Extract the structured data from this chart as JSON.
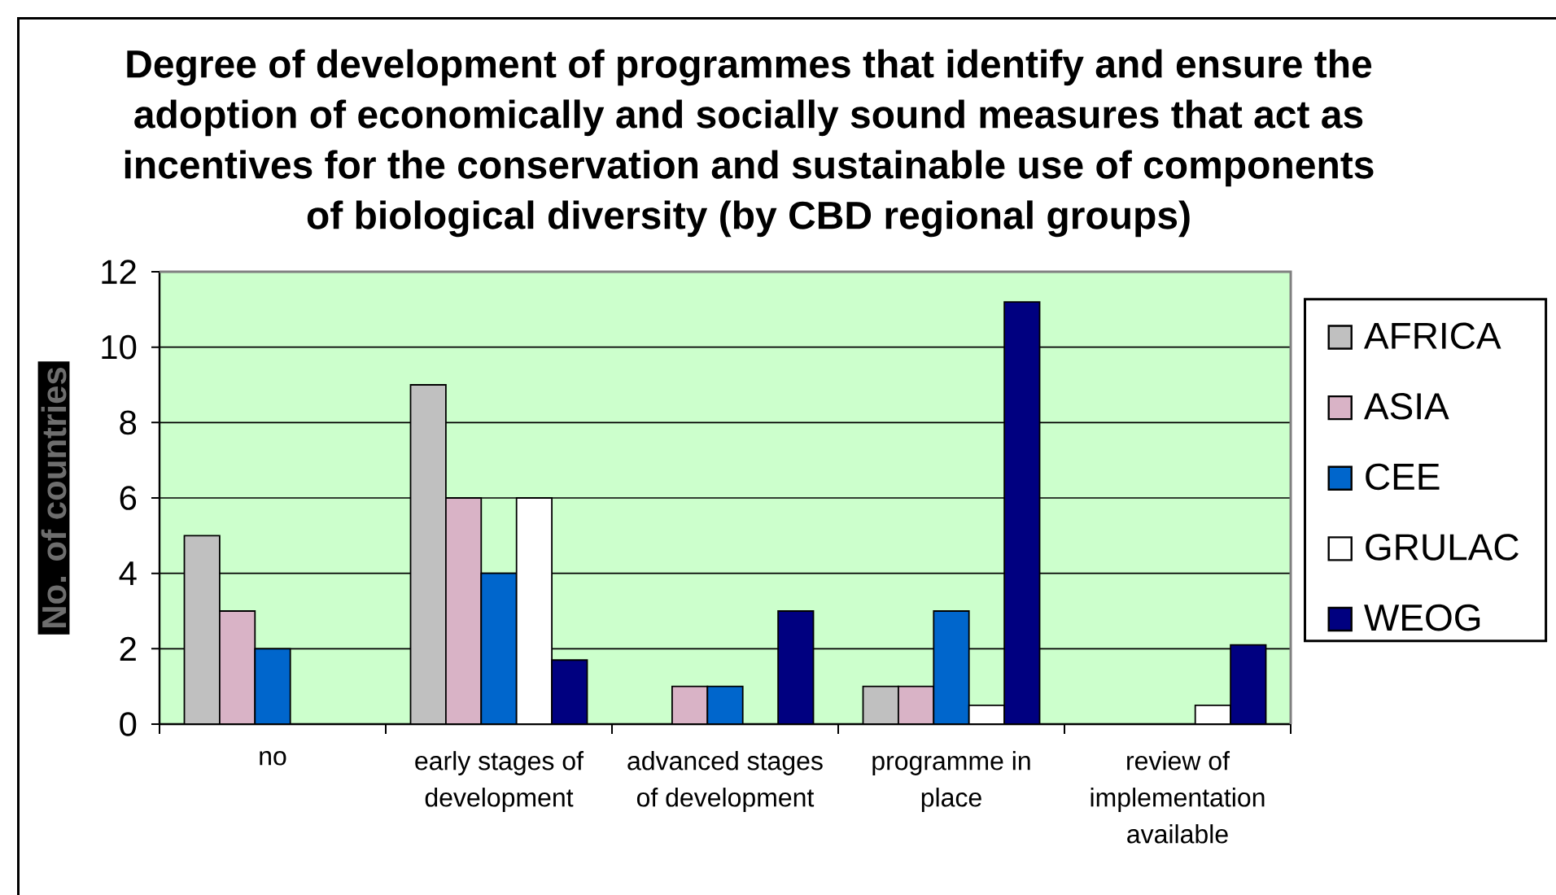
{
  "chart_data": {
    "type": "bar",
    "title": "Degree of development of programmes that identify and ensure the adoption of economically and socially sound measures that act as incentives for the conservation and sustainable use of components of biological diversity (by CBD regional groups)",
    "ylabel": "No. of countries",
    "categories": [
      "no",
      "early stages of development",
      "advanced stages of development",
      "programme in place",
      "review of implementation available"
    ],
    "series": [
      {
        "name": "AFRICA",
        "color": "#C0C0C0",
        "values": [
          5,
          9,
          0,
          1,
          0
        ]
      },
      {
        "name": "ASIA",
        "color": "#D9B3C6",
        "values": [
          3,
          6,
          1,
          1,
          0
        ]
      },
      {
        "name": "CEE",
        "color": "#0066CC",
        "values": [
          2,
          4,
          1,
          3,
          0
        ]
      },
      {
        "name": "GRULAC",
        "color": "#FFFFFF",
        "values": [
          0,
          6,
          0,
          0.5,
          0.5
        ]
      },
      {
        "name": "WEOG",
        "color": "#000080",
        "values": [
          0,
          1.7,
          3,
          11.2,
          2.1
        ]
      }
    ],
    "ylim": [
      0,
      12
    ],
    "yticks": [
      0,
      2,
      4,
      6,
      8,
      10,
      12
    ],
    "grid": "y",
    "legend": "right"
  }
}
